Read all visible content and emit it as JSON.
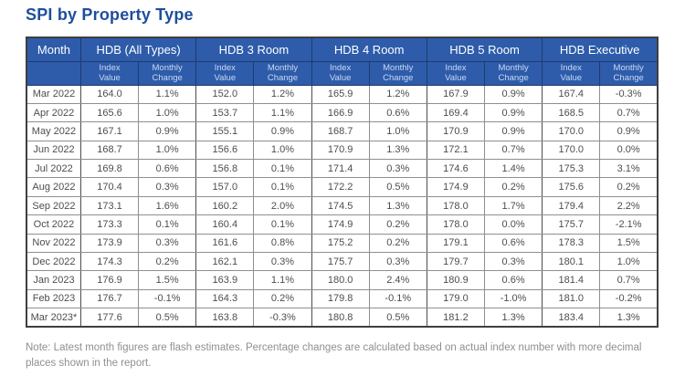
{
  "title": "SPI by Property Type",
  "colors": {
    "title_blue": "#1f4e9c",
    "header_blue": "#2e5caa",
    "header_border_navy": "#1e3b6d",
    "subheader_text": "#c9d9f2",
    "body_text": "#4d4d4d",
    "note_gray": "#8f8f8f"
  },
  "table": {
    "month_header": "Month",
    "groups": [
      {
        "label": "HDB (All Types)"
      },
      {
        "label": "HDB 3 Room"
      },
      {
        "label": "HDB 4 Room"
      },
      {
        "label": "HDB 5 Room"
      },
      {
        "label": "HDB Executive"
      }
    ],
    "sub_headers": {
      "index": "Index\nValue",
      "change": "Monthly\nChange"
    }
  },
  "chart_data": {
    "type": "table",
    "title": "SPI by Property Type",
    "column_groups": [
      "HDB (All Types)",
      "HDB 3 Room",
      "HDB 4 Room",
      "HDB 5 Room",
      "HDB Executive"
    ],
    "sub_columns": [
      "Index Value",
      "Monthly Change"
    ],
    "months": [
      "Mar 2022",
      "Apr 2022",
      "May 2022",
      "Jun 2022",
      "Jul 2022",
      "Aug 2022",
      "Sep 2022",
      "Oct 2022",
      "Nov 2022",
      "Dec 2022",
      "Jan 2023",
      "Feb 2023",
      "Mar 2023*"
    ],
    "series": [
      {
        "name": "HDB (All Types)",
        "index_value": [
          164.0,
          165.6,
          167.1,
          168.7,
          169.8,
          170.4,
          173.1,
          173.3,
          173.9,
          174.3,
          176.9,
          176.7,
          177.6
        ],
        "monthly_change_pct": [
          1.1,
          1.0,
          0.9,
          1.0,
          0.6,
          0.3,
          1.6,
          0.1,
          0.3,
          0.2,
          1.5,
          -0.1,
          0.5
        ]
      },
      {
        "name": "HDB 3 Room",
        "index_value": [
          152.0,
          153.7,
          155.1,
          156.6,
          156.8,
          157.0,
          160.2,
          160.4,
          161.6,
          162.1,
          163.9,
          164.3,
          163.8
        ],
        "monthly_change_pct": [
          1.2,
          1.1,
          0.9,
          1.0,
          0.1,
          0.1,
          2.0,
          0.1,
          0.8,
          0.3,
          1.1,
          0.2,
          -0.3
        ]
      },
      {
        "name": "HDB 4 Room",
        "index_value": [
          165.9,
          166.9,
          168.7,
          170.9,
          171.4,
          172.2,
          174.5,
          174.9,
          175.2,
          175.7,
          180.0,
          179.8,
          180.8
        ],
        "monthly_change_pct": [
          1.2,
          0.6,
          1.0,
          1.3,
          0.3,
          0.5,
          1.3,
          0.2,
          0.2,
          0.3,
          2.4,
          -0.1,
          0.5
        ]
      },
      {
        "name": "HDB 5 Room",
        "index_value": [
          167.9,
          169.4,
          170.9,
          172.1,
          174.6,
          174.9,
          178.0,
          178.0,
          179.1,
          179.7,
          180.9,
          179.0,
          181.2
        ],
        "monthly_change_pct": [
          0.9,
          0.9,
          0.9,
          0.7,
          1.4,
          0.2,
          1.7,
          0.0,
          0.6,
          0.3,
          0.6,
          -1.0,
          1.3
        ]
      },
      {
        "name": "HDB Executive",
        "index_value": [
          167.4,
          168.5,
          170.0,
          170.0,
          175.3,
          175.6,
          179.4,
          175.7,
          178.3,
          180.1,
          181.4,
          181.0,
          183.4
        ],
        "monthly_change_pct": [
          -0.3,
          0.7,
          0.9,
          0.0,
          3.1,
          0.2,
          2.2,
          -2.1,
          1.5,
          1.0,
          0.7,
          -0.2,
          1.3
        ]
      }
    ],
    "note": "Note: Latest month figures are flash estimates. Percentage changes are calculated based on actual index number with more decimal places shown in the report."
  },
  "note": "Note: Latest month figures are flash estimates. Percentage changes are calculated based on actual index number with more decimal places shown in the report."
}
